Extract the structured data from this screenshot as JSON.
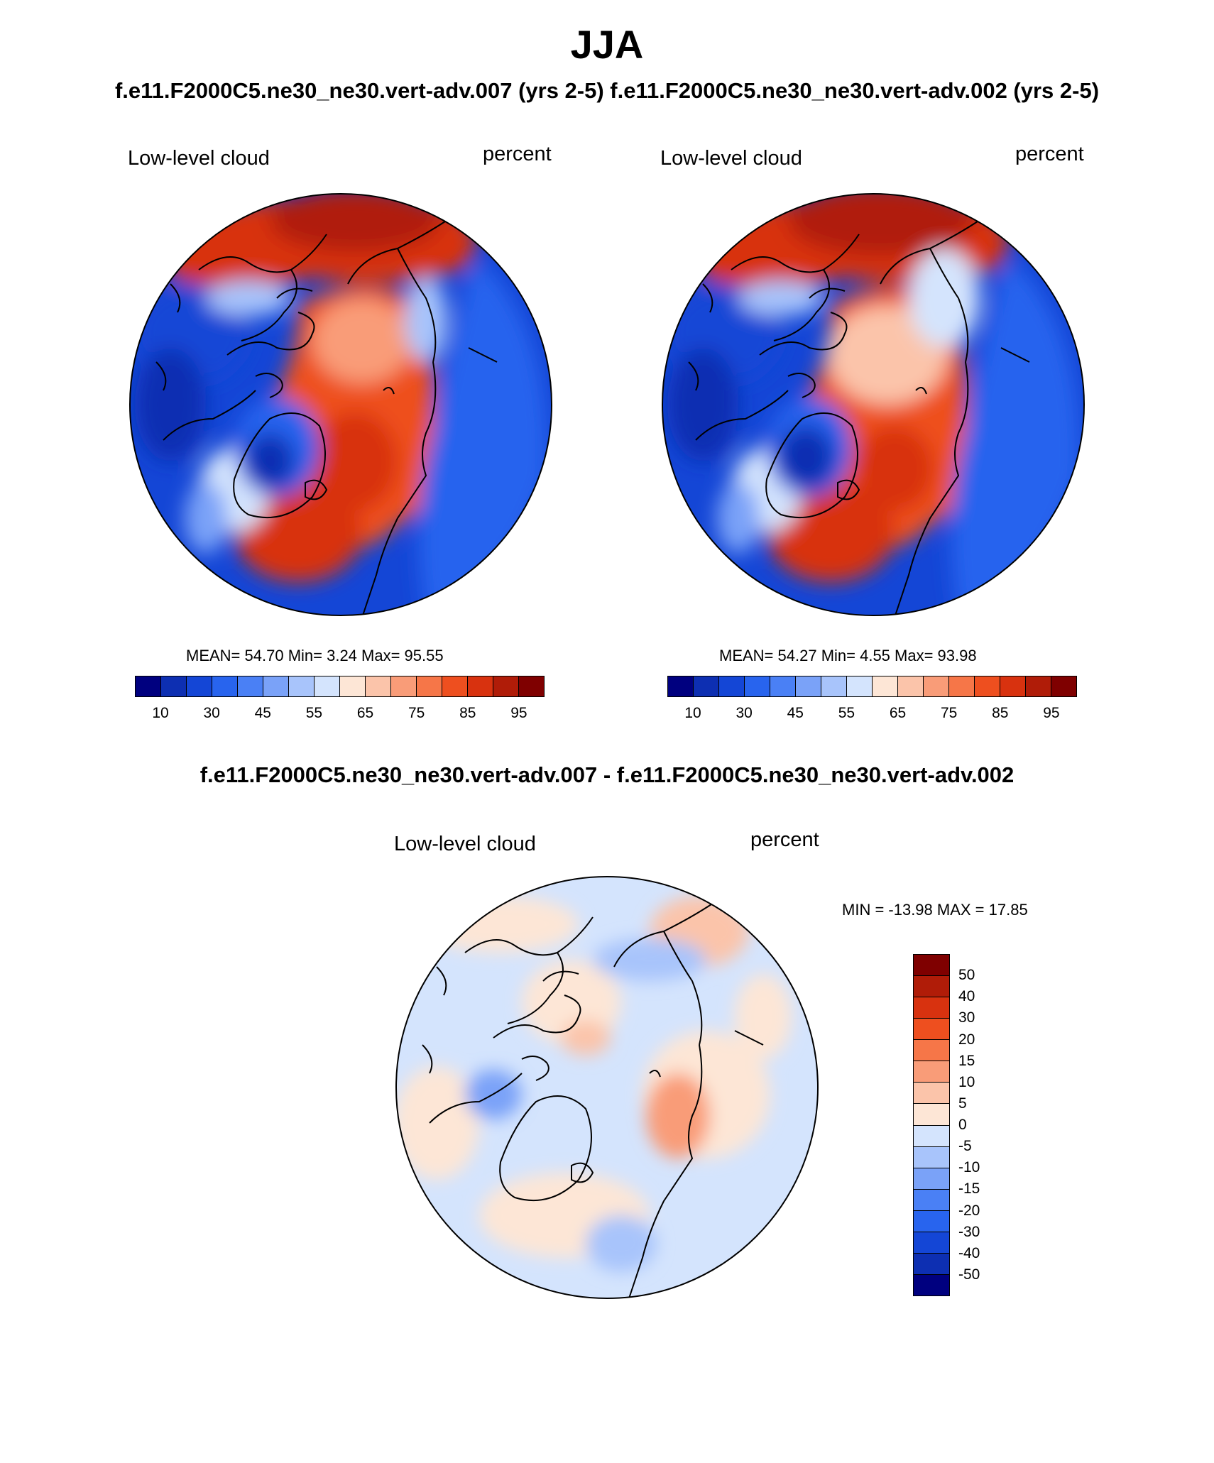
{
  "title": "JJA",
  "subtitle": "f.e11.F2000C5.ne30_ne30.vert-adv.007 (yrs 2-5)  f.e11.F2000C5.ne30_ne30.vert-adv.002 (yrs 2-5)",
  "diff_title": "f.e11.F2000C5.ne30_ne30.vert-adv.007 - f.e11.F2000C5.ne30_ne30.vert-adv.002",
  "panels": [
    {
      "variable": "Low-level cloud",
      "units": "percent",
      "stats": "MEAN=  54.70  Min=   3.24  Max=  95.55"
    },
    {
      "variable": "Low-level cloud",
      "units": "percent",
      "stats": "MEAN=  54.27  Min=   4.55  Max=  93.98"
    }
  ],
  "diff_panel": {
    "variable": "Low-level cloud",
    "units": "percent",
    "stats": "MIN = -13.98 MAX =  17.85"
  },
  "colorbar": {
    "labels": [
      "10",
      "30",
      "45",
      "55",
      "65",
      "75",
      "85",
      "95"
    ],
    "colors": [
      "#00007f",
      "#0d2fb2",
      "#1446d6",
      "#2864ee",
      "#4a80f5",
      "#7aa2f8",
      "#a8c4fb",
      "#d4e4fd",
      "#fde6d6",
      "#fbc4aa",
      "#f99c78",
      "#f67648",
      "#ee4f1f",
      "#d8320f",
      "#b01c08",
      "#7f0000"
    ]
  },
  "diff_colorbar": {
    "labels": [
      "50",
      "40",
      "30",
      "20",
      "15",
      "10",
      "5",
      "0",
      "-5",
      "-10",
      "-15",
      "-20",
      "-30",
      "-40",
      "-50"
    ],
    "colors": [
      "#7f0000",
      "#b01c08",
      "#d8320f",
      "#ee4f1f",
      "#f67648",
      "#f99c78",
      "#fbc4aa",
      "#fde6d6",
      "#d4e4fd",
      "#a8c4fb",
      "#7aa2f8",
      "#4a80f5",
      "#2864ee",
      "#1446d6",
      "#0d2fb2",
      "#00007f"
    ]
  }
}
